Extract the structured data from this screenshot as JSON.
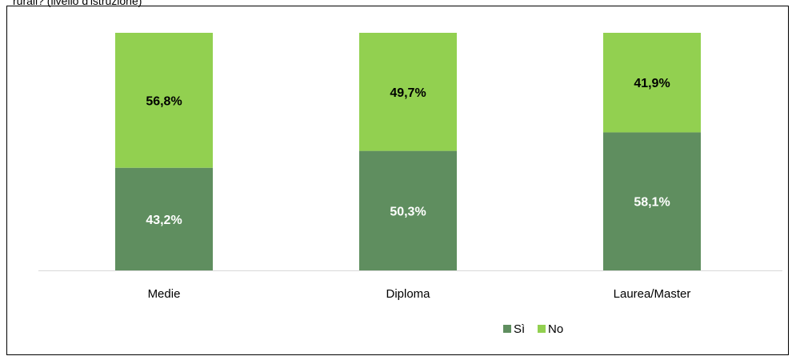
{
  "caption": "rurali? (livello d'istruzione)",
  "chart_data": {
    "type": "bar",
    "stacked": true,
    "categories": [
      "Medie",
      "Diploma",
      "Laurea/Master"
    ],
    "series": [
      {
        "name": "Sì",
        "values": [
          43.2,
          50.3,
          58.1
        ],
        "labels": [
          "43,2%",
          "50,3%",
          "58,1%"
        ],
        "color": "#5f8e5f",
        "label_color": "#ffffff"
      },
      {
        "name": "No",
        "values": [
          56.8,
          49.7,
          41.9
        ],
        "labels": [
          "56,8%",
          "49,7%",
          "41,9%"
        ],
        "color": "#92d050",
        "label_color": "#000000"
      }
    ],
    "ylim": [
      0,
      100
    ],
    "legend_position": "bottom",
    "grid": false,
    "title": "",
    "xlabel": "",
    "ylabel": ""
  }
}
